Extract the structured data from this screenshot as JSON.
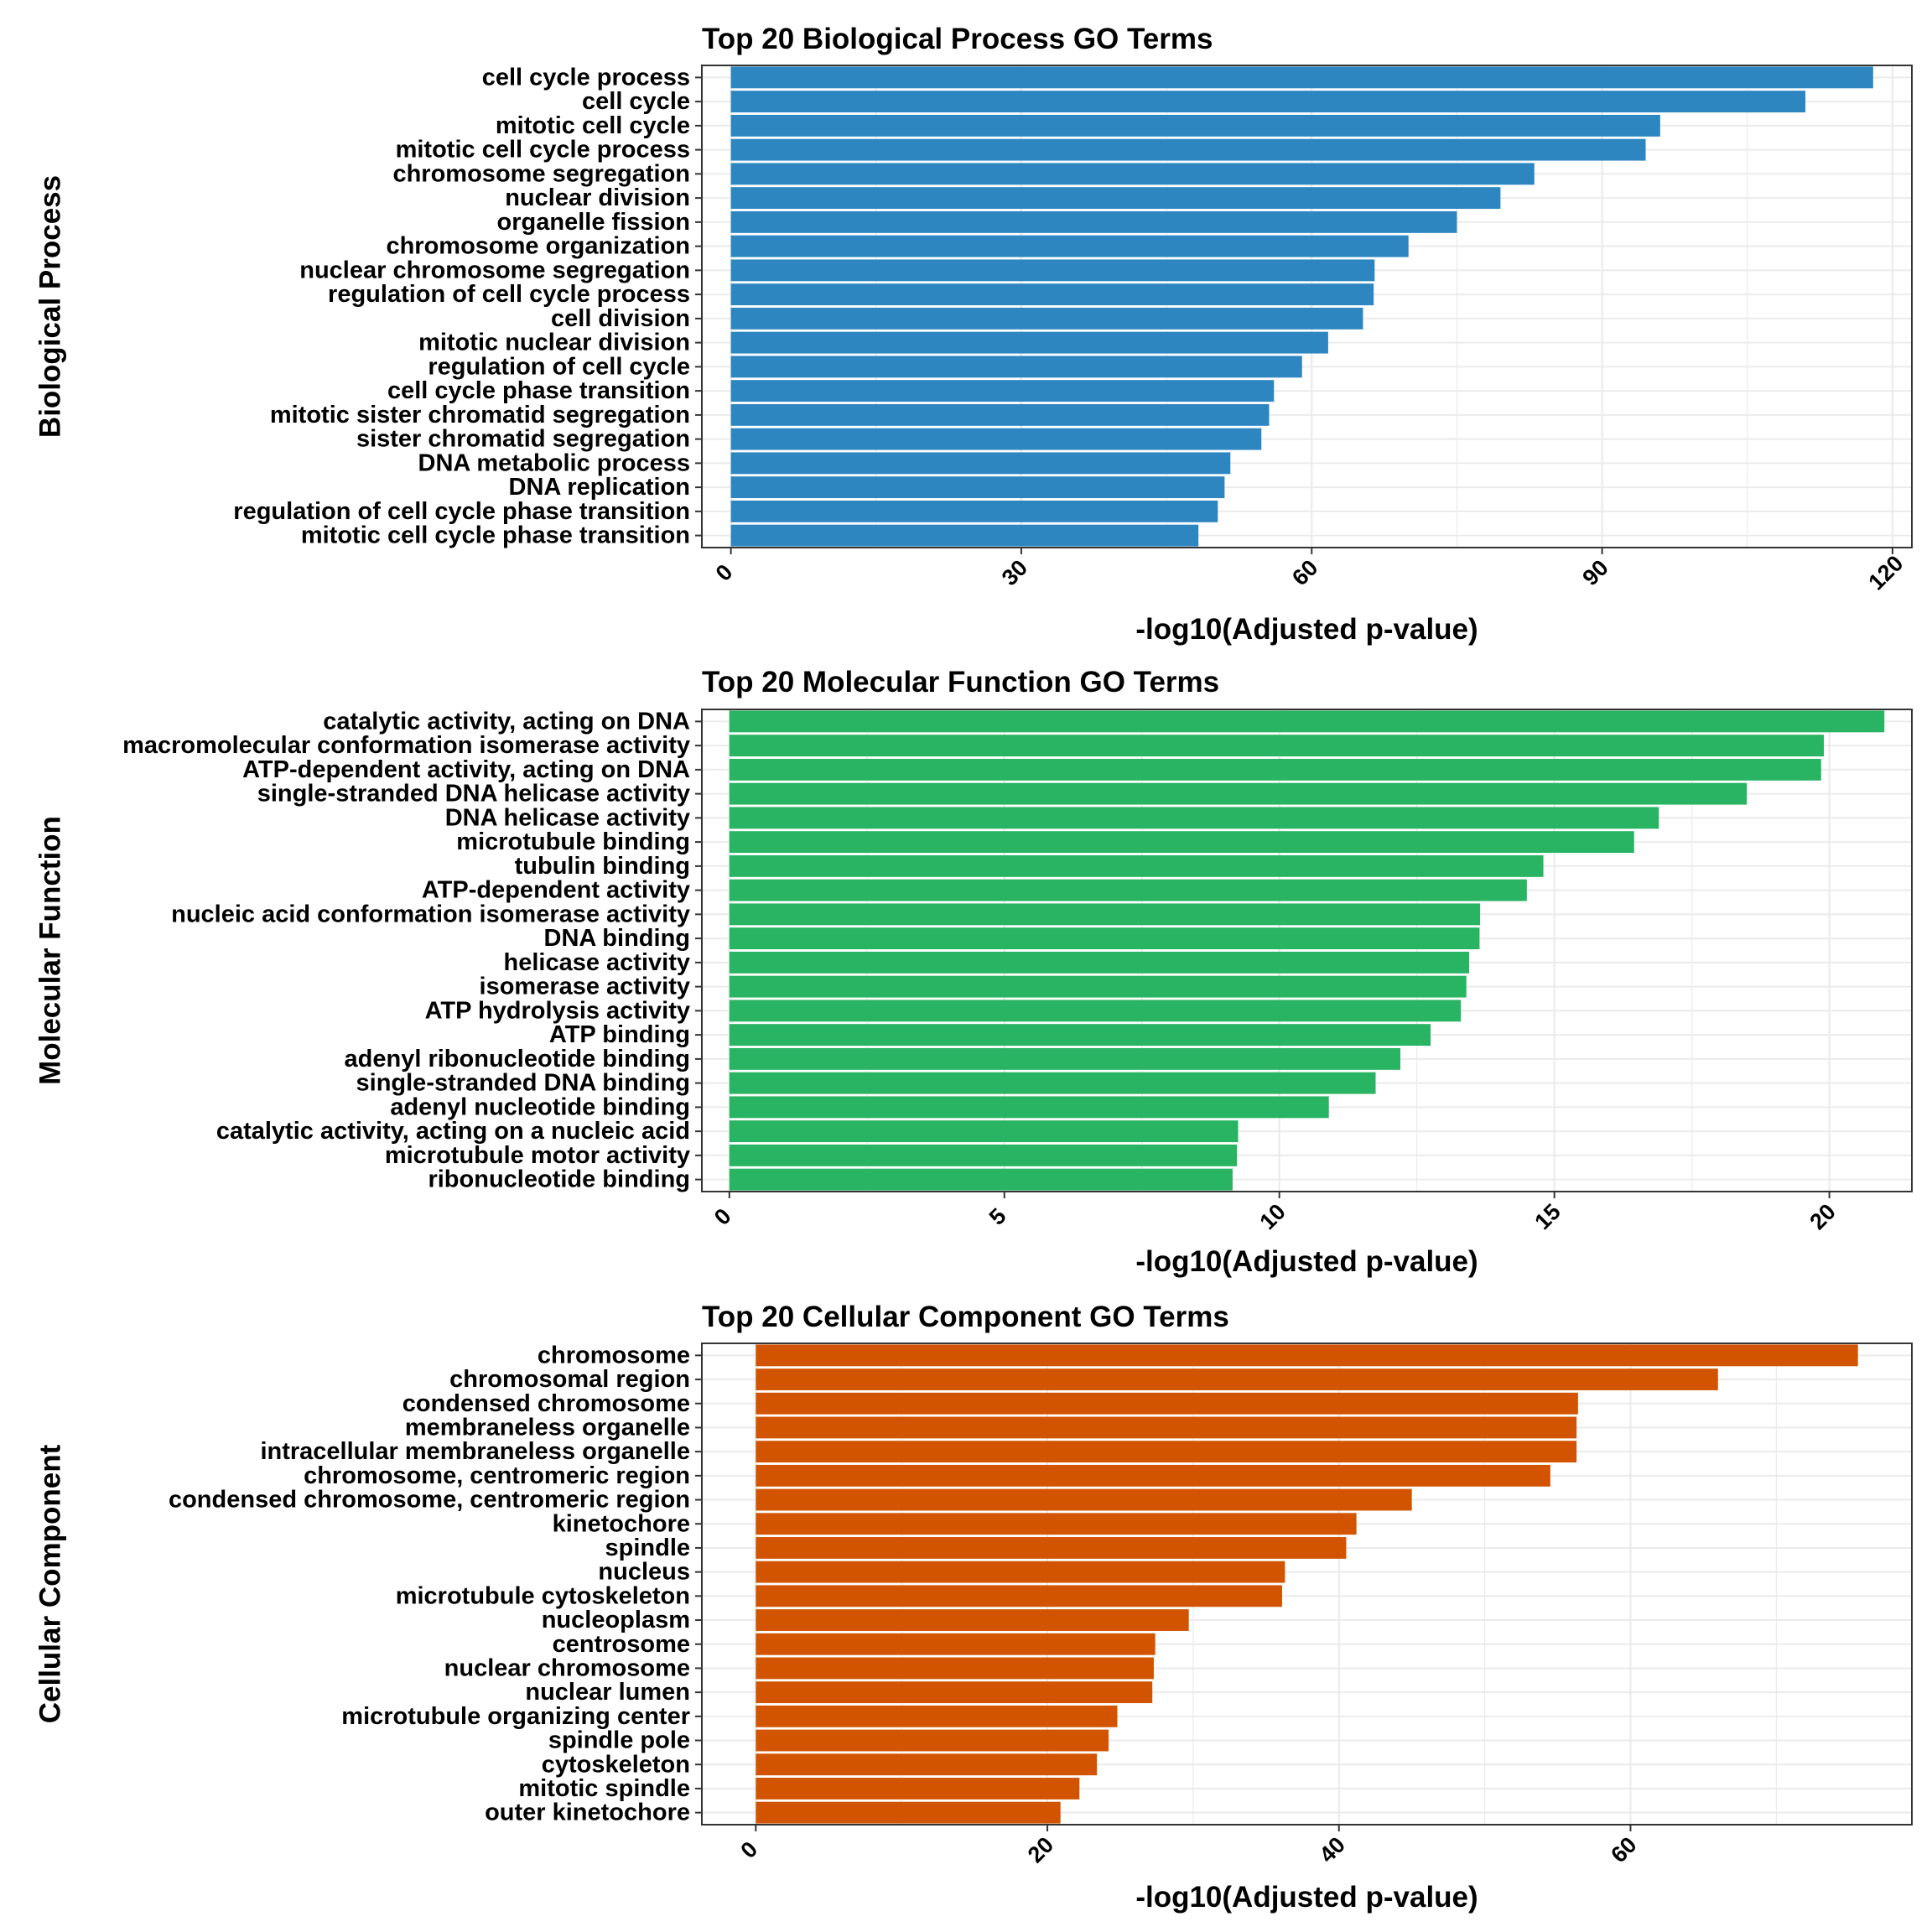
{
  "chart_data": [
    {
      "type": "bar",
      "orientation": "horizontal",
      "title": "Top 20 Biological Process GO Terms",
      "xlabel": "-log10(Adjusted p-value)",
      "ylabel": "Biological Process",
      "color": "#2E86C1",
      "xlim": [
        -3,
        122
      ],
      "xticks": [
        0,
        30,
        60,
        90,
        120
      ],
      "grid": true,
      "categories": [
        "cell cycle process",
        "cell cycle",
        "mitotic cell cycle",
        "mitotic cell cycle process",
        "chromosome segregation",
        "nuclear division",
        "organelle fission",
        "chromosome organization",
        "nuclear chromosome segregation",
        "regulation of cell cycle process",
        "cell division",
        "mitotic nuclear division",
        "regulation of cell cycle",
        "cell cycle phase transition",
        "mitotic sister chromatid segregation",
        "sister chromatid segregation",
        "DNA metabolic process",
        "DNA replication",
        "regulation of cell cycle phase transition",
        "mitotic cell cycle phase transition"
      ],
      "values": [
        118,
        111,
        96,
        94.5,
        83,
        79.5,
        75,
        70,
        66.5,
        66.4,
        65.3,
        61.7,
        59,
        56.1,
        55.6,
        54.8,
        51.6,
        51,
        50.3,
        48.3
      ]
    },
    {
      "type": "bar",
      "orientation": "horizontal",
      "title": "Top 20 Molecular Function GO Terms",
      "xlabel": "-log10(Adjusted p-value)",
      "ylabel": "Molecular Function",
      "color": "#28B463",
      "xlim": [
        -0.5,
        21.5
      ],
      "xticks": [
        0,
        5,
        10,
        15,
        20
      ],
      "grid": true,
      "categories": [
        "catalytic activity, acting on DNA",
        "macromolecular conformation isomerase activity",
        "ATP-dependent activity, acting on DNA",
        "single-stranded DNA helicase activity",
        "DNA helicase activity",
        "microtubule binding",
        "tubulin binding",
        "ATP-dependent activity",
        "nucleic acid conformation isomerase activity",
        "DNA binding",
        "helicase activity",
        "isomerase activity",
        "ATP hydrolysis activity",
        "ATP binding",
        "adenyl ribonucleotide binding",
        "single-stranded DNA binding",
        "adenyl nucleotide binding",
        "catalytic activity, acting on a nucleic acid",
        "microtubule motor activity",
        "ribonucleotide binding"
      ],
      "values": [
        21,
        19.9,
        19.85,
        18.5,
        16.9,
        16.45,
        14.8,
        14.5,
        13.65,
        13.64,
        13.45,
        13.4,
        13.3,
        12.75,
        12.2,
        11.75,
        10.9,
        9.25,
        9.23,
        9.15
      ]
    },
    {
      "type": "bar",
      "orientation": "horizontal",
      "title": "Top 20 Cellular Component GO Terms",
      "xlabel": "-log10(Adjusted p-value)",
      "ylabel": "Cellular Component",
      "color": "#D35400",
      "xlim": [
        -3.7,
        79.3
      ],
      "xticks": [
        0,
        20,
        40,
        60
      ],
      "grid": true,
      "categories": [
        "chromosome",
        "chromosomal region",
        "condensed chromosome",
        "membraneless organelle",
        "intracellular membraneless organelle",
        "chromosome, centromeric region",
        "condensed chromosome, centromeric region",
        "kinetochore",
        "spindle",
        "nucleus",
        "microtubule cytoskeleton",
        "nucleoplasm",
        "centrosome",
        "nuclear chromosome",
        "nuclear lumen",
        "microtubule organizing center",
        "spindle pole",
        "cytoskeleton",
        "mitotic spindle",
        "outer kinetochore"
      ],
      "values": [
        75.6,
        66,
        56.4,
        56.3,
        56.3,
        54.5,
        45,
        41.2,
        40.5,
        36.3,
        36.1,
        29.7,
        27.4,
        27.3,
        27.2,
        24.8,
        24.2,
        23.4,
        22.2,
        20.9
      ]
    }
  ]
}
